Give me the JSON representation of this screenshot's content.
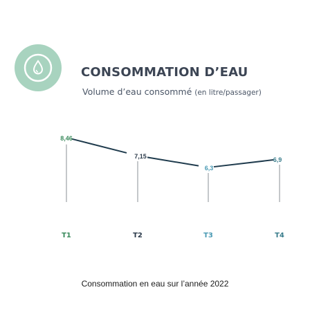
{
  "header": {
    "title": "CONSOMMATION D’EAU",
    "subtitle_main": "Volume d’eau consommé",
    "subtitle_unit": "(en litre/passager)",
    "logo_icon": "water-drop-icon"
  },
  "chart_data": {
    "type": "line",
    "categories": [
      "T1",
      "T2",
      "T3",
      "T4"
    ],
    "values": [
      8.46,
      7.15,
      6.3,
      6.9
    ],
    "value_labels": [
      "8,46",
      "7,15",
      "6,3",
      "6,9"
    ],
    "line_color": "#1f3b4d",
    "colors": [
      "#3a8a5c",
      "#2b3a4a",
      "#4a9ab4",
      "#3a7d8c"
    ]
  },
  "caption": "Consommation en eau sur l’année 2022"
}
